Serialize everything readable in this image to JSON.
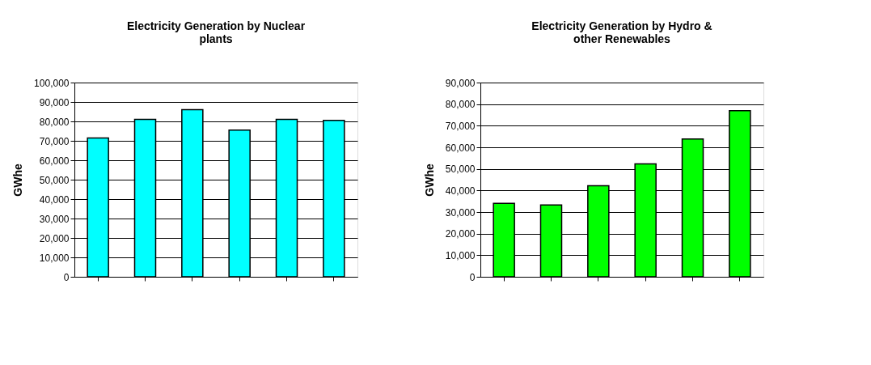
{
  "chart_data": [
    {
      "type": "bar",
      "title": "Electricity Generation by Nuclear plants",
      "ylabel": "GWhe",
      "categories": [
        null,
        null,
        null,
        null,
        null,
        null
      ],
      "values": [
        71500,
        81000,
        86000,
        75500,
        81000,
        80500
      ],
      "color": "#00ffff",
      "ylim": [
        0,
        100000
      ],
      "yticks": [
        {
          "value": 0,
          "label": "0"
        },
        {
          "value": 10000,
          "label": "10,000"
        },
        {
          "value": 20000,
          "label": "20,000"
        },
        {
          "value": 30000,
          "label": "30,000"
        },
        {
          "value": 40000,
          "label": "40,000"
        },
        {
          "value": 50000,
          "label": "50,000"
        },
        {
          "value": 60000,
          "label": "60,000"
        },
        {
          "value": 70000,
          "label": "70,000"
        },
        {
          "value": 80000,
          "label": "80,000"
        },
        {
          "value": 90000,
          "label": "90,000"
        },
        {
          "value": 100000,
          "label": "100,000"
        }
      ],
      "grid": "y"
    },
    {
      "type": "bar",
      "title": "Electricity Generation by Hydro & other Renewables",
      "ylabel": "GWhe",
      "categories": [
        null,
        null,
        null,
        null,
        null,
        null
      ],
      "values": [
        34000,
        33300,
        42200,
        52300,
        63800,
        77000
      ],
      "color": "#00ff00",
      "ylim": [
        0,
        90000
      ],
      "yticks": [
        {
          "value": 0,
          "label": "0"
        },
        {
          "value": 10000,
          "label": "10,000"
        },
        {
          "value": 20000,
          "label": "20,000"
        },
        {
          "value": 30000,
          "label": "30,000"
        },
        {
          "value": 40000,
          "label": "40,000"
        },
        {
          "value": 50000,
          "label": "50,000"
        },
        {
          "value": 60000,
          "label": "60,000"
        },
        {
          "value": 70000,
          "label": "70,000"
        },
        {
          "value": 80000,
          "label": "80,000"
        },
        {
          "value": 90000,
          "label": "90,000"
        }
      ],
      "grid": "y"
    }
  ]
}
